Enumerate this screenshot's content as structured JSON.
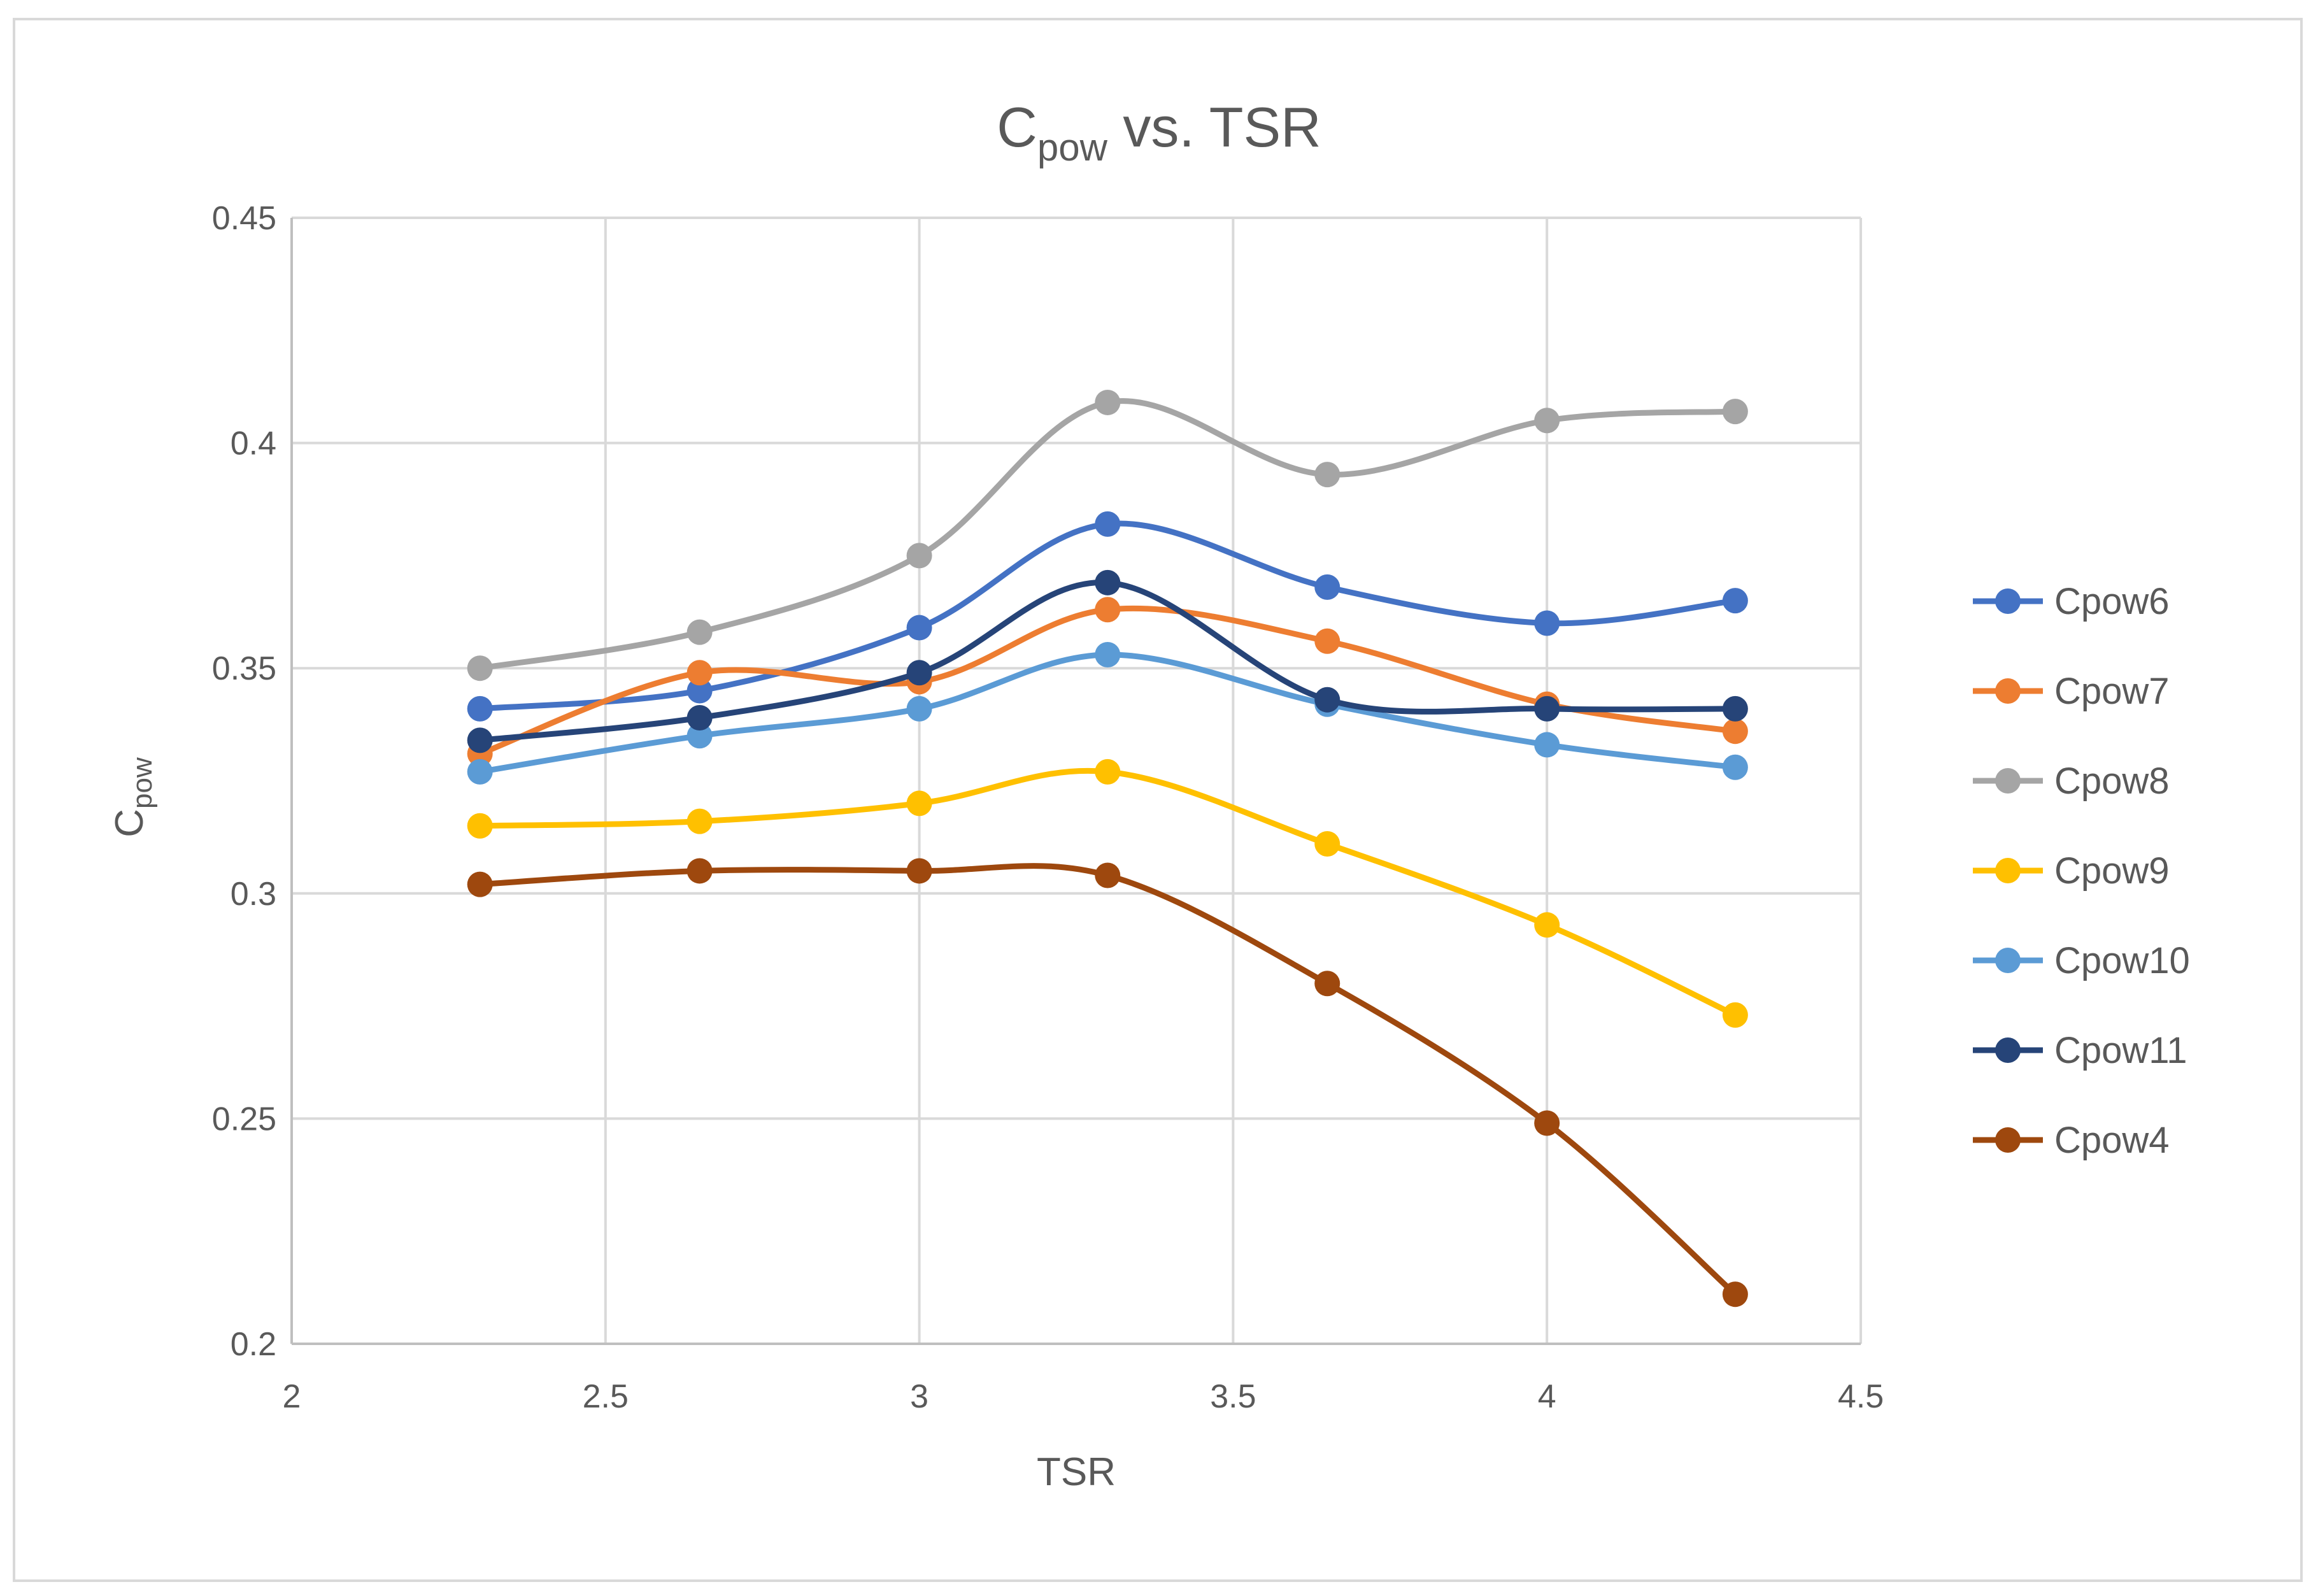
{
  "chart_data": {
    "type": "line",
    "title": "Cpow vs. TSR",
    "title_main": "C",
    "title_sub": "pow",
    "title_rest": " vs. TSR",
    "xlabel": "TSR",
    "ylabel": "Cpow",
    "ylabel_main": "C",
    "ylabel_sub": "pow",
    "xlim": [
      2,
      4.5
    ],
    "ylim": [
      0.2,
      0.45
    ],
    "xticks": [
      2,
      2.5,
      3,
      3.5,
      4,
      4.5
    ],
    "yticks": [
      0.2,
      0.25,
      0.3,
      0.35,
      0.4,
      0.45
    ],
    "xtick_labels": [
      "2",
      "2.5",
      "3",
      "3.5",
      "4",
      "4.5"
    ],
    "ytick_labels": [
      "0.2",
      "0.25",
      "0.3",
      "0.35",
      "0.4",
      "0.45"
    ],
    "grid": true,
    "smooth": true,
    "legend_position": "right",
    "x": [
      2.3,
      2.65,
      3.0,
      3.3,
      3.65,
      4.0,
      4.3
    ],
    "series": [
      {
        "name": "Cpow6",
        "color": "#4472C4",
        "values": [
          0.341,
          0.345,
          0.359,
          0.382,
          0.368,
          0.36,
          0.365
        ]
      },
      {
        "name": "Cpow7",
        "color": "#ED7D31",
        "values": [
          0.331,
          0.349,
          0.347,
          0.363,
          0.356,
          0.342,
          0.336
        ]
      },
      {
        "name": "Cpow8",
        "color": "#A5A5A5",
        "values": [
          0.35,
          0.358,
          0.375,
          0.409,
          0.393,
          0.405,
          0.407
        ]
      },
      {
        "name": "Cpow9",
        "color": "#FFC000",
        "values": [
          0.315,
          0.316,
          0.32,
          0.327,
          0.311,
          0.293,
          0.273
        ]
      },
      {
        "name": "Cpow10",
        "color": "#5B9BD5",
        "values": [
          0.327,
          0.335,
          0.341,
          0.353,
          0.342,
          0.333,
          0.328
        ]
      },
      {
        "name": "Cpow11",
        "color": "#264478",
        "values": [
          0.334,
          0.339,
          0.349,
          0.369,
          0.343,
          0.341,
          0.341
        ]
      },
      {
        "name": "Cpow4",
        "color": "#9E480E",
        "values": [
          0.302,
          0.305,
          0.305,
          0.304,
          0.28,
          0.249,
          0.211
        ]
      }
    ]
  }
}
